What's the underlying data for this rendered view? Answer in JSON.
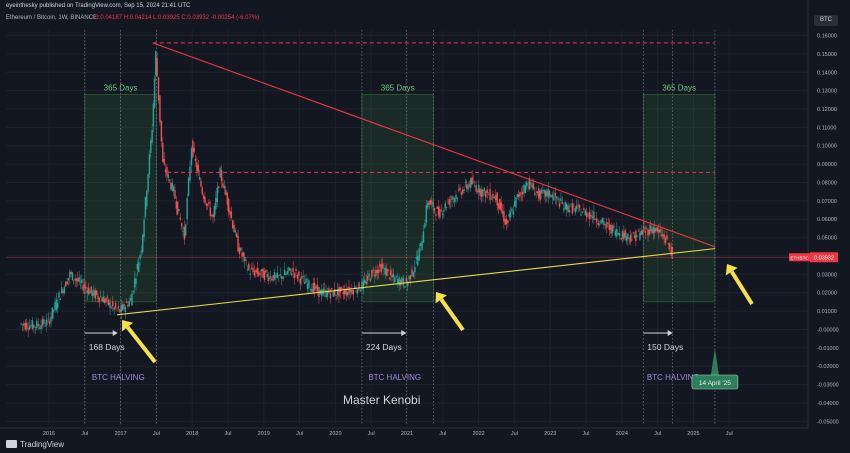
{
  "header": {
    "published": "eyeinthesky published on TradingView.com, Sep 15, 2024 21:41 UTC",
    "symbol": "Ethereum / Bitcoin, 1W, BINANCE",
    "ohlc": "O:0.04187 H:0.04214 L:0.03925 C:0.03932 -0.00254 (-6.07%)",
    "currency": "BTC",
    "brand": "TradingView"
  },
  "chart_data": {
    "type": "candlestick",
    "title": "Ethereum / Bitcoin, 1W, BINANCE",
    "y_axis": {
      "range": [
        -0.052,
        0.163
      ],
      "ticks": [
        0.16,
        0.15,
        0.14,
        0.13,
        0.12,
        0.11,
        0.1,
        0.09,
        0.08,
        0.07,
        0.06,
        0.05,
        0.04,
        0.03,
        0.02,
        0.01,
        0.0,
        -0.01,
        -0.02,
        -0.03,
        -0.04,
        -0.05
      ],
      "tick_labels": [
        "0.16000",
        "0.15000",
        "0.14000",
        "0.13000",
        "0.12000",
        "0.11000",
        "0.10000",
        "0.09000",
        "0.08000",
        "0.07000",
        "0.06000",
        "0.05000",
        "0.04000",
        "0.03000",
        "0.02000",
        "0.01000",
        "-0.00000",
        "-0.01000",
        "-0.02000",
        "-0.03000",
        "-0.04000",
        "-0.05000"
      ]
    },
    "x_axis": {
      "range": [
        2015.4,
        2026.6
      ],
      "ticks": [
        {
          "t": 2016.0,
          "label": "2016"
        },
        {
          "t": 2016.5,
          "label": "Jul"
        },
        {
          "t": 2017.0,
          "label": "2017"
        },
        {
          "t": 2017.5,
          "label": "Jul"
        },
        {
          "t": 2018.0,
          "label": "2018"
        },
        {
          "t": 2018.5,
          "label": "Jul"
        },
        {
          "t": 2019.0,
          "label": "2019"
        },
        {
          "t": 2019.5,
          "label": "Jul"
        },
        {
          "t": 2020.0,
          "label": "2020"
        },
        {
          "t": 2020.5,
          "label": "Jul"
        },
        {
          "t": 2021.0,
          "label": "2021"
        },
        {
          "t": 2021.5,
          "label": "Jul"
        },
        {
          "t": 2022.0,
          "label": "2022"
        },
        {
          "t": 2022.5,
          "label": "Jul"
        },
        {
          "t": 2023.0,
          "label": "2023"
        },
        {
          "t": 2023.5,
          "label": "Jul"
        },
        {
          "t": 2024.0,
          "label": "2024"
        },
        {
          "t": 2024.5,
          "label": "Jul"
        },
        {
          "t": 2025.0,
          "label": "2025"
        },
        {
          "t": 2025.5,
          "label": "Jul"
        }
      ]
    },
    "price_path": [
      [
        2015.6,
        0.003
      ],
      [
        2015.8,
        0.002
      ],
      [
        2016.0,
        0.004
      ],
      [
        2016.15,
        0.018
      ],
      [
        2016.3,
        0.03
      ],
      [
        2016.45,
        0.025
      ],
      [
        2016.6,
        0.02
      ],
      [
        2016.75,
        0.017
      ],
      [
        2016.9,
        0.012
      ],
      [
        2017.0,
        0.01
      ],
      [
        2017.15,
        0.016
      ],
      [
        2017.3,
        0.045
      ],
      [
        2017.45,
        0.11
      ],
      [
        2017.5,
        0.15
      ],
      [
        2017.6,
        0.09
      ],
      [
        2017.75,
        0.075
      ],
      [
        2017.9,
        0.05
      ],
      [
        2018.0,
        0.1
      ],
      [
        2018.15,
        0.075
      ],
      [
        2018.3,
        0.06
      ],
      [
        2018.4,
        0.085
      ],
      [
        2018.5,
        0.07
      ],
      [
        2018.65,
        0.045
      ],
      [
        2018.8,
        0.032
      ],
      [
        2019.0,
        0.03
      ],
      [
        2019.2,
        0.028
      ],
      [
        2019.4,
        0.032
      ],
      [
        2019.6,
        0.025
      ],
      [
        2019.8,
        0.02
      ],
      [
        2020.0,
        0.02
      ],
      [
        2020.2,
        0.021
      ],
      [
        2020.4,
        0.024
      ],
      [
        2020.5,
        0.03
      ],
      [
        2020.65,
        0.034
      ],
      [
        2020.8,
        0.028
      ],
      [
        2021.0,
        0.025
      ],
      [
        2021.1,
        0.033
      ],
      [
        2021.2,
        0.045
      ],
      [
        2021.3,
        0.07
      ],
      [
        2021.45,
        0.063
      ],
      [
        2021.6,
        0.07
      ],
      [
        2021.75,
        0.075
      ],
      [
        2021.9,
        0.08
      ],
      [
        2022.05,
        0.075
      ],
      [
        2022.25,
        0.072
      ],
      [
        2022.4,
        0.057
      ],
      [
        2022.55,
        0.072
      ],
      [
        2022.7,
        0.08
      ],
      [
        2022.85,
        0.073
      ],
      [
        2023.0,
        0.074
      ],
      [
        2023.2,
        0.067
      ],
      [
        2023.4,
        0.065
      ],
      [
        2023.6,
        0.062
      ],
      [
        2023.8,
        0.056
      ],
      [
        2024.0,
        0.052
      ],
      [
        2024.15,
        0.05
      ],
      [
        2024.3,
        0.053
      ],
      [
        2024.45,
        0.055
      ],
      [
        2024.6,
        0.05
      ],
      [
        2024.7,
        0.043
      ],
      [
        2024.71,
        0.0393
      ]
    ],
    "lines": [
      {
        "kind": "downtrend",
        "color": "#f23645",
        "from": [
          2017.45,
          0.156
        ],
        "to": [
          2025.3,
          0.045
        ]
      },
      {
        "kind": "uptrend",
        "color": "#e9d84a",
        "from": [
          2016.95,
          0.008
        ],
        "to": [
          2025.3,
          0.044
        ]
      },
      {
        "kind": "resistance",
        "color": "#f23645",
        "style": "dashed",
        "y": 0.156,
        "from": 2017.45,
        "to": 2025.3
      },
      {
        "kind": "resistance",
        "color": "#f23645",
        "style": "dashed",
        "y": 0.0855,
        "from": 2017.65,
        "to": 2025.3
      },
      {
        "kind": "current-price",
        "color": "#f23645",
        "y": 0.0393
      }
    ],
    "boxes": [
      {
        "x0": 2016.5,
        "x1": 2017.5,
        "y0": 0.015,
        "y1": 0.128,
        "label": "365 Days"
      },
      {
        "x0": 2020.37,
        "x1": 2021.37,
        "y0": 0.015,
        "y1": 0.128,
        "label": "365 Days"
      },
      {
        "x0": 2024.3,
        "x1": 2025.3,
        "y0": 0.015,
        "y1": 0.128,
        "label": "365 Days"
      }
    ],
    "vlines": [
      2016.5,
      2017.0,
      2017.5,
      2020.37,
      2020.99,
      2021.37,
      2024.3,
      2024.71,
      2025.3
    ],
    "annotations": [
      {
        "text": "168 Days",
        "x0": 2016.5,
        "x1": 2016.96
      },
      {
        "text": "224 Days",
        "x0": 2020.37,
        "x1": 2020.99
      },
      {
        "text": "150 Days",
        "x0": 2024.3,
        "x1": 2024.71
      }
    ],
    "halving_labels": [
      {
        "text": "BTC HALVING",
        "t": 2016.6
      },
      {
        "text": "BTC HALVING",
        "t": 2020.46
      },
      {
        "text": "BTC HALVING",
        "t": 2024.35
      }
    ],
    "callout": {
      "text": "14 April '25",
      "t": 2025.3
    },
    "watermark": "Master Kenobi",
    "price_tag": {
      "symbol": "ETHBTC",
      "value": "0.03932"
    }
  }
}
